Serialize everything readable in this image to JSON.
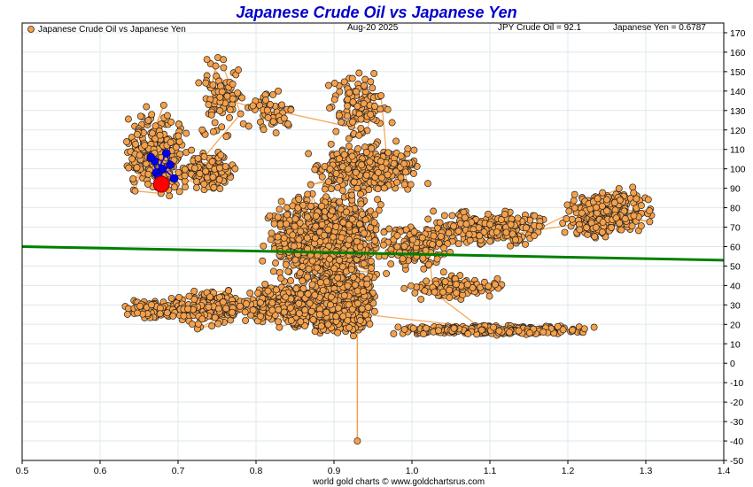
{
  "chart_data": {
    "type": "scatter",
    "title": "Japanese Crude Oil vs Japanese Yen",
    "legend_label": "Japanese Crude Oil vs Japanese Yen",
    "date": "Aug-20  2025",
    "crude_readout": "JPY Crude Oil = 92.1",
    "yen_readout": "Japanese Yen = 0.6787",
    "footer": "world gold charts © www.goldchartsrus.com",
    "xlim": [
      0.5,
      1.4
    ],
    "ylim": [
      -50,
      175
    ],
    "x_ticks": [
      "0.5",
      "0.6",
      "0.7",
      "0.8",
      "0.9",
      "1.0",
      "1.1",
      "1.2",
      "1.3",
      "1.4"
    ],
    "y_ticks": [
      "170",
      "160",
      "150",
      "140",
      "130",
      "120",
      "110",
      "100",
      "90",
      "80",
      "70",
      "60",
      "50",
      "40",
      "30",
      "20",
      "10",
      "0",
      "-10",
      "-20",
      "-30",
      "-40",
      "-50"
    ],
    "grid": true,
    "legend_position": "top-left",
    "colors": {
      "points": "#f5a04a",
      "point_edge": "#222222",
      "path": "#f5a04a",
      "recent": "#0000ee",
      "current": "#ff0000",
      "trend": "#008000",
      "title": "#0000cc"
    },
    "clusters": [
      {
        "x": [
          0.62,
          0.72
        ],
        "y": [
          80,
          135
        ],
        "n": 260
      },
      {
        "x": [
          0.7,
          0.78
        ],
        "y": [
          85,
          112
        ],
        "n": 150
      },
      {
        "x": [
          0.72,
          0.8
        ],
        "y": [
          110,
          162
        ],
        "n": 90
      },
      {
        "x": [
          0.78,
          0.86
        ],
        "y": [
          115,
          145
        ],
        "n": 50
      },
      {
        "x": [
          0.88,
          0.98
        ],
        "y": [
          110,
          155
        ],
        "n": 110
      },
      {
        "x": [
          0.86,
          1.03
        ],
        "y": [
          85,
          115
        ],
        "n": 320
      },
      {
        "x": [
          0.8,
          0.98
        ],
        "y": [
          35,
          92
        ],
        "n": 900
      },
      {
        "x": [
          0.86,
          0.96
        ],
        "y": [
          12,
          50
        ],
        "n": 650
      },
      {
        "x": [
          0.78,
          0.92
        ],
        "y": [
          15,
          45
        ],
        "n": 350
      },
      {
        "x": [
          0.62,
          0.72
        ],
        "y": [
          22,
          34
        ],
        "n": 90
      },
      {
        "x": [
          0.68,
          0.82
        ],
        "y": [
          16,
          40
        ],
        "n": 180
      },
      {
        "x": [
          0.95,
          1.25
        ],
        "y": [
          14,
          20
        ],
        "n": 280
      },
      {
        "x": [
          0.98,
          1.13
        ],
        "y": [
          32,
          46
        ],
        "n": 110
      },
      {
        "x": [
          1.0,
          1.2
        ],
        "y": [
          58,
          80
        ],
        "n": 230
      },
      {
        "x": [
          1.18,
          1.32
        ],
        "y": [
          60,
          94
        ],
        "n": 300
      },
      {
        "x": [
          0.95,
          1.06
        ],
        "y": [
          45,
          75
        ],
        "n": 130
      }
    ],
    "outlier": {
      "x": 0.93,
      "y": -40
    },
    "recent_points": [
      [
        0.67,
        104
      ],
      [
        0.68,
        100
      ],
      [
        0.672,
        98
      ],
      [
        0.685,
        108
      ],
      [
        0.69,
        102
      ],
      [
        0.675,
        96
      ],
      [
        0.665,
        106
      ],
      [
        0.695,
        95
      ],
      [
        0.68,
        92.1
      ]
    ],
    "current": {
      "x": 0.6787,
      "y": 92.1
    },
    "trend": {
      "x": [
        0.5,
        1.4
      ],
      "y": [
        60,
        53
      ]
    }
  }
}
